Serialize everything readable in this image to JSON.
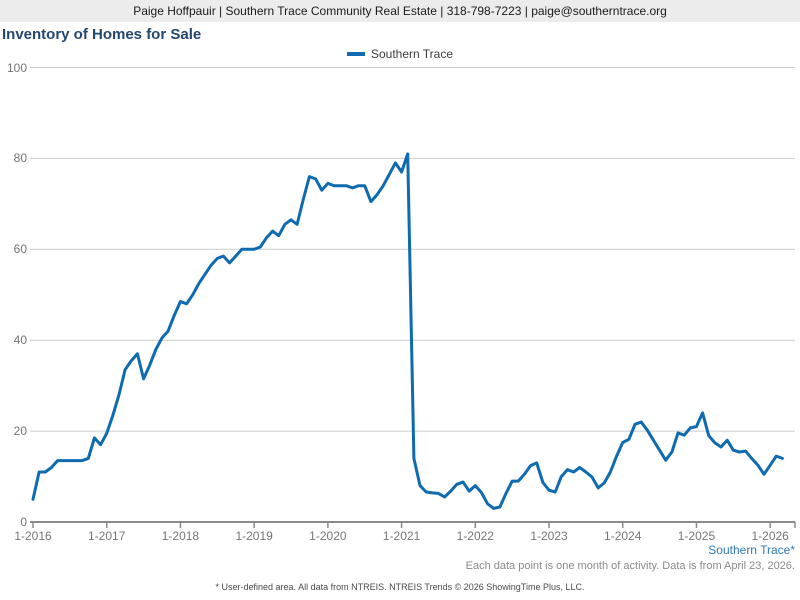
{
  "header": {
    "broker_info": "Paige Hoffpauir | Southern Trace Community Real Estate | 318-798-7223 | paige@southerntrace.org"
  },
  "title": "Inventory of Homes for Sale",
  "legend": {
    "label": "Southern Trace",
    "position": "top-center"
  },
  "footer": {
    "area_label": "Southern Trace*",
    "note": "Each data point is one month of activity. Data is from April 23, 2026.",
    "disclaimer": "* User-defined area. All data from NTREIS. NTREIS Trends © 2026 ShowingTime Plus, LLC."
  },
  "colors": {
    "accent": "#0e6bb0",
    "title": "#23476f",
    "link": "#3079b5",
    "grid": "#cbcbcb",
    "axis": "#8a8a8a",
    "tick_text": "#757575",
    "header_bar_bg": "#ececec"
  },
  "chart_data": {
    "type": "line",
    "title": "Inventory of Homes for Sale",
    "xlabel": "",
    "ylabel": "",
    "ylim": [
      0,
      100
    ],
    "y_ticks": [
      0,
      20,
      40,
      60,
      80,
      100
    ],
    "grid": "horizontal-only",
    "legend_position": "top-center",
    "x_unit": "month",
    "x_first_month": "2016-01",
    "x_last_month": "2026-03",
    "x_tick_labels": [
      "1-2016",
      "1-2017",
      "1-2018",
      "1-2019",
      "1-2020",
      "1-2021",
      "1-2022",
      "1-2023",
      "1-2024",
      "1-2025",
      "1-2026"
    ],
    "x_tick_month_idx": [
      0,
      12,
      24,
      36,
      48,
      60,
      72,
      84,
      96,
      108,
      120
    ],
    "series": [
      {
        "name": "Southern Trace",
        "color": "#0e6bb0",
        "values": [
          5,
          11,
          11,
          12,
          13.5,
          13.5,
          13.5,
          13.5,
          13.5,
          14,
          18.5,
          17,
          19.5,
          23.5,
          28,
          33.5,
          35.5,
          37,
          31.5,
          34.5,
          38,
          40.5,
          42,
          45.5,
          48.5,
          48,
          50,
          52.5,
          54.5,
          56.5,
          58,
          58.5,
          57,
          58.5,
          60,
          60,
          60,
          60.5,
          62.5,
          64,
          63,
          65.5,
          66.5,
          65.5,
          71,
          76,
          75.5,
          73,
          74.5,
          74,
          74,
          74,
          73.5,
          74,
          74,
          70.5,
          72,
          74,
          76.5,
          79,
          77,
          81,
          14,
          8,
          6.6,
          6.4,
          6.3,
          5.5,
          6.8,
          8.3,
          8.8,
          6.8,
          8,
          6.5,
          4,
          3,
          3.3,
          6.3,
          9,
          9,
          10.5,
          12.4,
          13,
          8.7,
          7,
          6.6,
          10,
          11.5,
          11,
          12,
          11,
          9.9,
          7.5,
          8.6,
          11,
          14.5,
          17.5,
          18.2,
          21.5,
          22,
          20.2,
          18,
          15.8,
          13.6,
          15.4,
          19.6,
          19.1,
          20.7,
          21,
          24,
          19,
          17.4,
          16.5,
          18,
          15.8,
          15.4,
          15.6,
          14,
          12.5,
          10.5,
          12.5,
          14.5,
          14
        ]
      }
    ]
  }
}
